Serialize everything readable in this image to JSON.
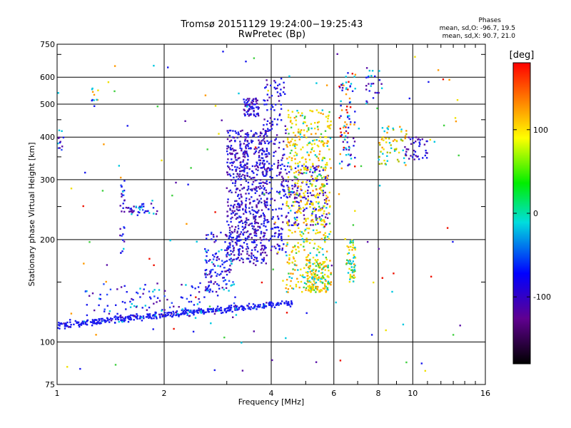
{
  "header": {
    "title_line1": "Tromsø 20151129 19:24:00−19:25:43",
    "title_line2": "RwPretec (Bp)",
    "stats_title": "Phases",
    "stats_o": "mean, sd,O: -96.7, 19.5",
    "stats_x": "mean, sd,X:  90.7, 21.0"
  },
  "colorbar": {
    "label": "[deg]",
    "ticks": [
      "100",
      "0",
      "-100"
    ],
    "tick_values": [
      100,
      0,
      -100
    ],
    "range": [
      -180,
      180
    ]
  },
  "colors": {
    "ox_blue": "#1a1aee",
    "purple": "#5a10a8",
    "yellow": "#f0e000",
    "orange": "#ff9a00",
    "red": "#ee1100",
    "cyan": "#00c8e0",
    "green": "#40d040"
  },
  "chart_data": {
    "type": "scatter",
    "xlabel": "Frequency [MHz]",
    "ylabel": "Stationary phase Virtual Height [km]",
    "xscale": "log",
    "yscale": "log",
    "xlim": [
      1,
      16
    ],
    "ylim": [
      75,
      750
    ],
    "grid": true,
    "x_ticks": [
      1,
      2,
      4,
      6,
      8,
      10,
      16
    ],
    "x_tick_labels": [
      "1",
      "2",
      "4",
      "6",
      "8",
      "10",
      "16"
    ],
    "y_ticks": [
      75,
      100,
      200,
      300,
      400,
      500,
      600,
      750
    ],
    "y_tick_labels": [
      "75",
      "100",
      "200",
      "300",
      "400",
      "500",
      "600",
      "750"
    ],
    "color_dimension": "phase [deg]",
    "traces": [
      {
        "x": [
          1.0,
          1.5,
          2.0,
          2.5,
          3.0,
          3.5,
          4.0,
          4.4,
          5.2
        ],
        "y": [
          113,
          114,
          117,
          120,
          124,
          127,
          131,
          133,
          136
        ],
        "phase": -110
      },
      {
        "x": [
          3.4,
          3.8,
          4.2,
          4.8,
          5.6,
          6.2,
          6.7
        ],
        "y": [
          290,
          275,
          265,
          255,
          250,
          255,
          260
        ],
        "phase": -100
      },
      {
        "x": [
          4.4,
          4.8,
          5.2,
          5.6,
          6.2,
          6.6,
          6.9
        ],
        "y": [
          136,
          137,
          140,
          143,
          145,
          150,
          155
        ],
        "phase": 90
      },
      {
        "x": [
          2.6,
          3.0,
          3.3,
          3.6,
          4.0
        ],
        "y": [
          150,
          165,
          180,
          200,
          215
        ],
        "phase": -120
      }
    ]
  }
}
